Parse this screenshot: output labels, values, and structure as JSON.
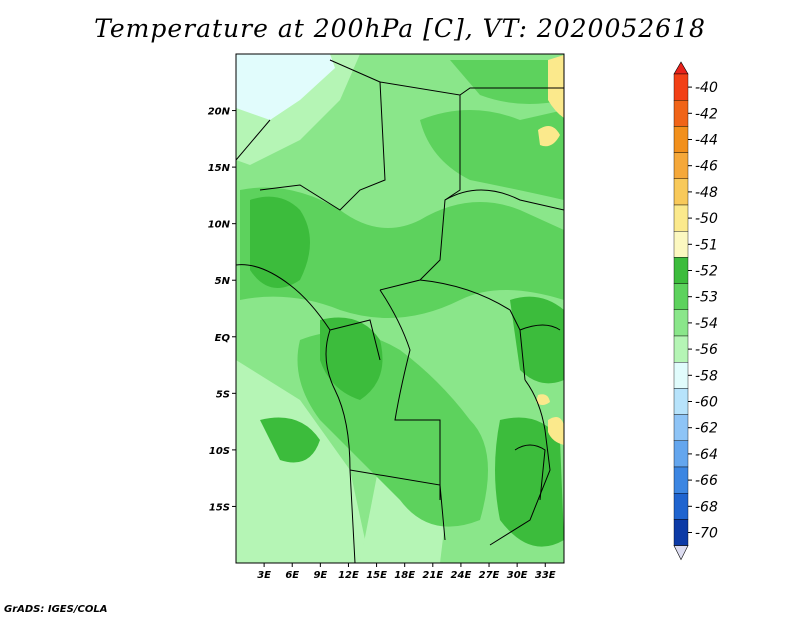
{
  "title": "Temperature at 200hPa [C], VT: 2020052618",
  "credit": "GrADS: IGES/COLA",
  "map": {
    "lon_range": [
      0,
      35
    ],
    "lat_range": [
      -20,
      25
    ],
    "lat_ticks": [
      {
        "value": 20,
        "label": "20N"
      },
      {
        "value": 15,
        "label": "15N"
      },
      {
        "value": 10,
        "label": "10N"
      },
      {
        "value": 5,
        "label": "5N"
      },
      {
        "value": 0,
        "label": "EQ"
      },
      {
        "value": -5,
        "label": "5S"
      },
      {
        "value": -10,
        "label": "10S"
      },
      {
        "value": -15,
        "label": "15S"
      }
    ],
    "lon_ticks": [
      {
        "value": 3,
        "label": "3E"
      },
      {
        "value": 6,
        "label": "6E"
      },
      {
        "value": 9,
        "label": "9E"
      },
      {
        "value": 12,
        "label": "12E"
      },
      {
        "value": 15,
        "label": "15E"
      },
      {
        "value": 18,
        "label": "18E"
      },
      {
        "value": 21,
        "label": "21E"
      },
      {
        "value": 24,
        "label": "24E"
      },
      {
        "value": 27,
        "label": "27E"
      },
      {
        "value": 30,
        "label": "30E"
      },
      {
        "value": 33,
        "label": "33E"
      }
    ]
  },
  "colorbar": {
    "top_color": "#e8221a",
    "bottom_color": "#dcdcf0",
    "bins": [
      {
        "color": "#f24016",
        "label": "-40"
      },
      {
        "color": "#f06418",
        "label": "-42"
      },
      {
        "color": "#f2901c",
        "label": "-44"
      },
      {
        "color": "#f5a83a",
        "label": "-46"
      },
      {
        "color": "#f8c95a",
        "label": "-48"
      },
      {
        "color": "#fbe98c",
        "label": "-50"
      },
      {
        "color": "#fcf8c0",
        "label": "-51"
      },
      {
        "color": "#3cbc3c",
        "label": "-52"
      },
      {
        "color": "#5dd25d",
        "label": "-53"
      },
      {
        "color": "#8ae68a",
        "label": "-54"
      },
      {
        "color": "#b5f5b5",
        "label": "-56"
      },
      {
        "color": "#e1fcfc",
        "label": "-58"
      },
      {
        "color": "#b7e3fb",
        "label": "-60"
      },
      {
        "color": "#8ec4f6",
        "label": "-62"
      },
      {
        "color": "#64a6ee",
        "label": "-64"
      },
      {
        "color": "#3c86e2",
        "label": "-66"
      },
      {
        "color": "#1f64cf",
        "label": "-68"
      },
      {
        "color": "#0c3aa6",
        "label": "-70"
      }
    ]
  }
}
